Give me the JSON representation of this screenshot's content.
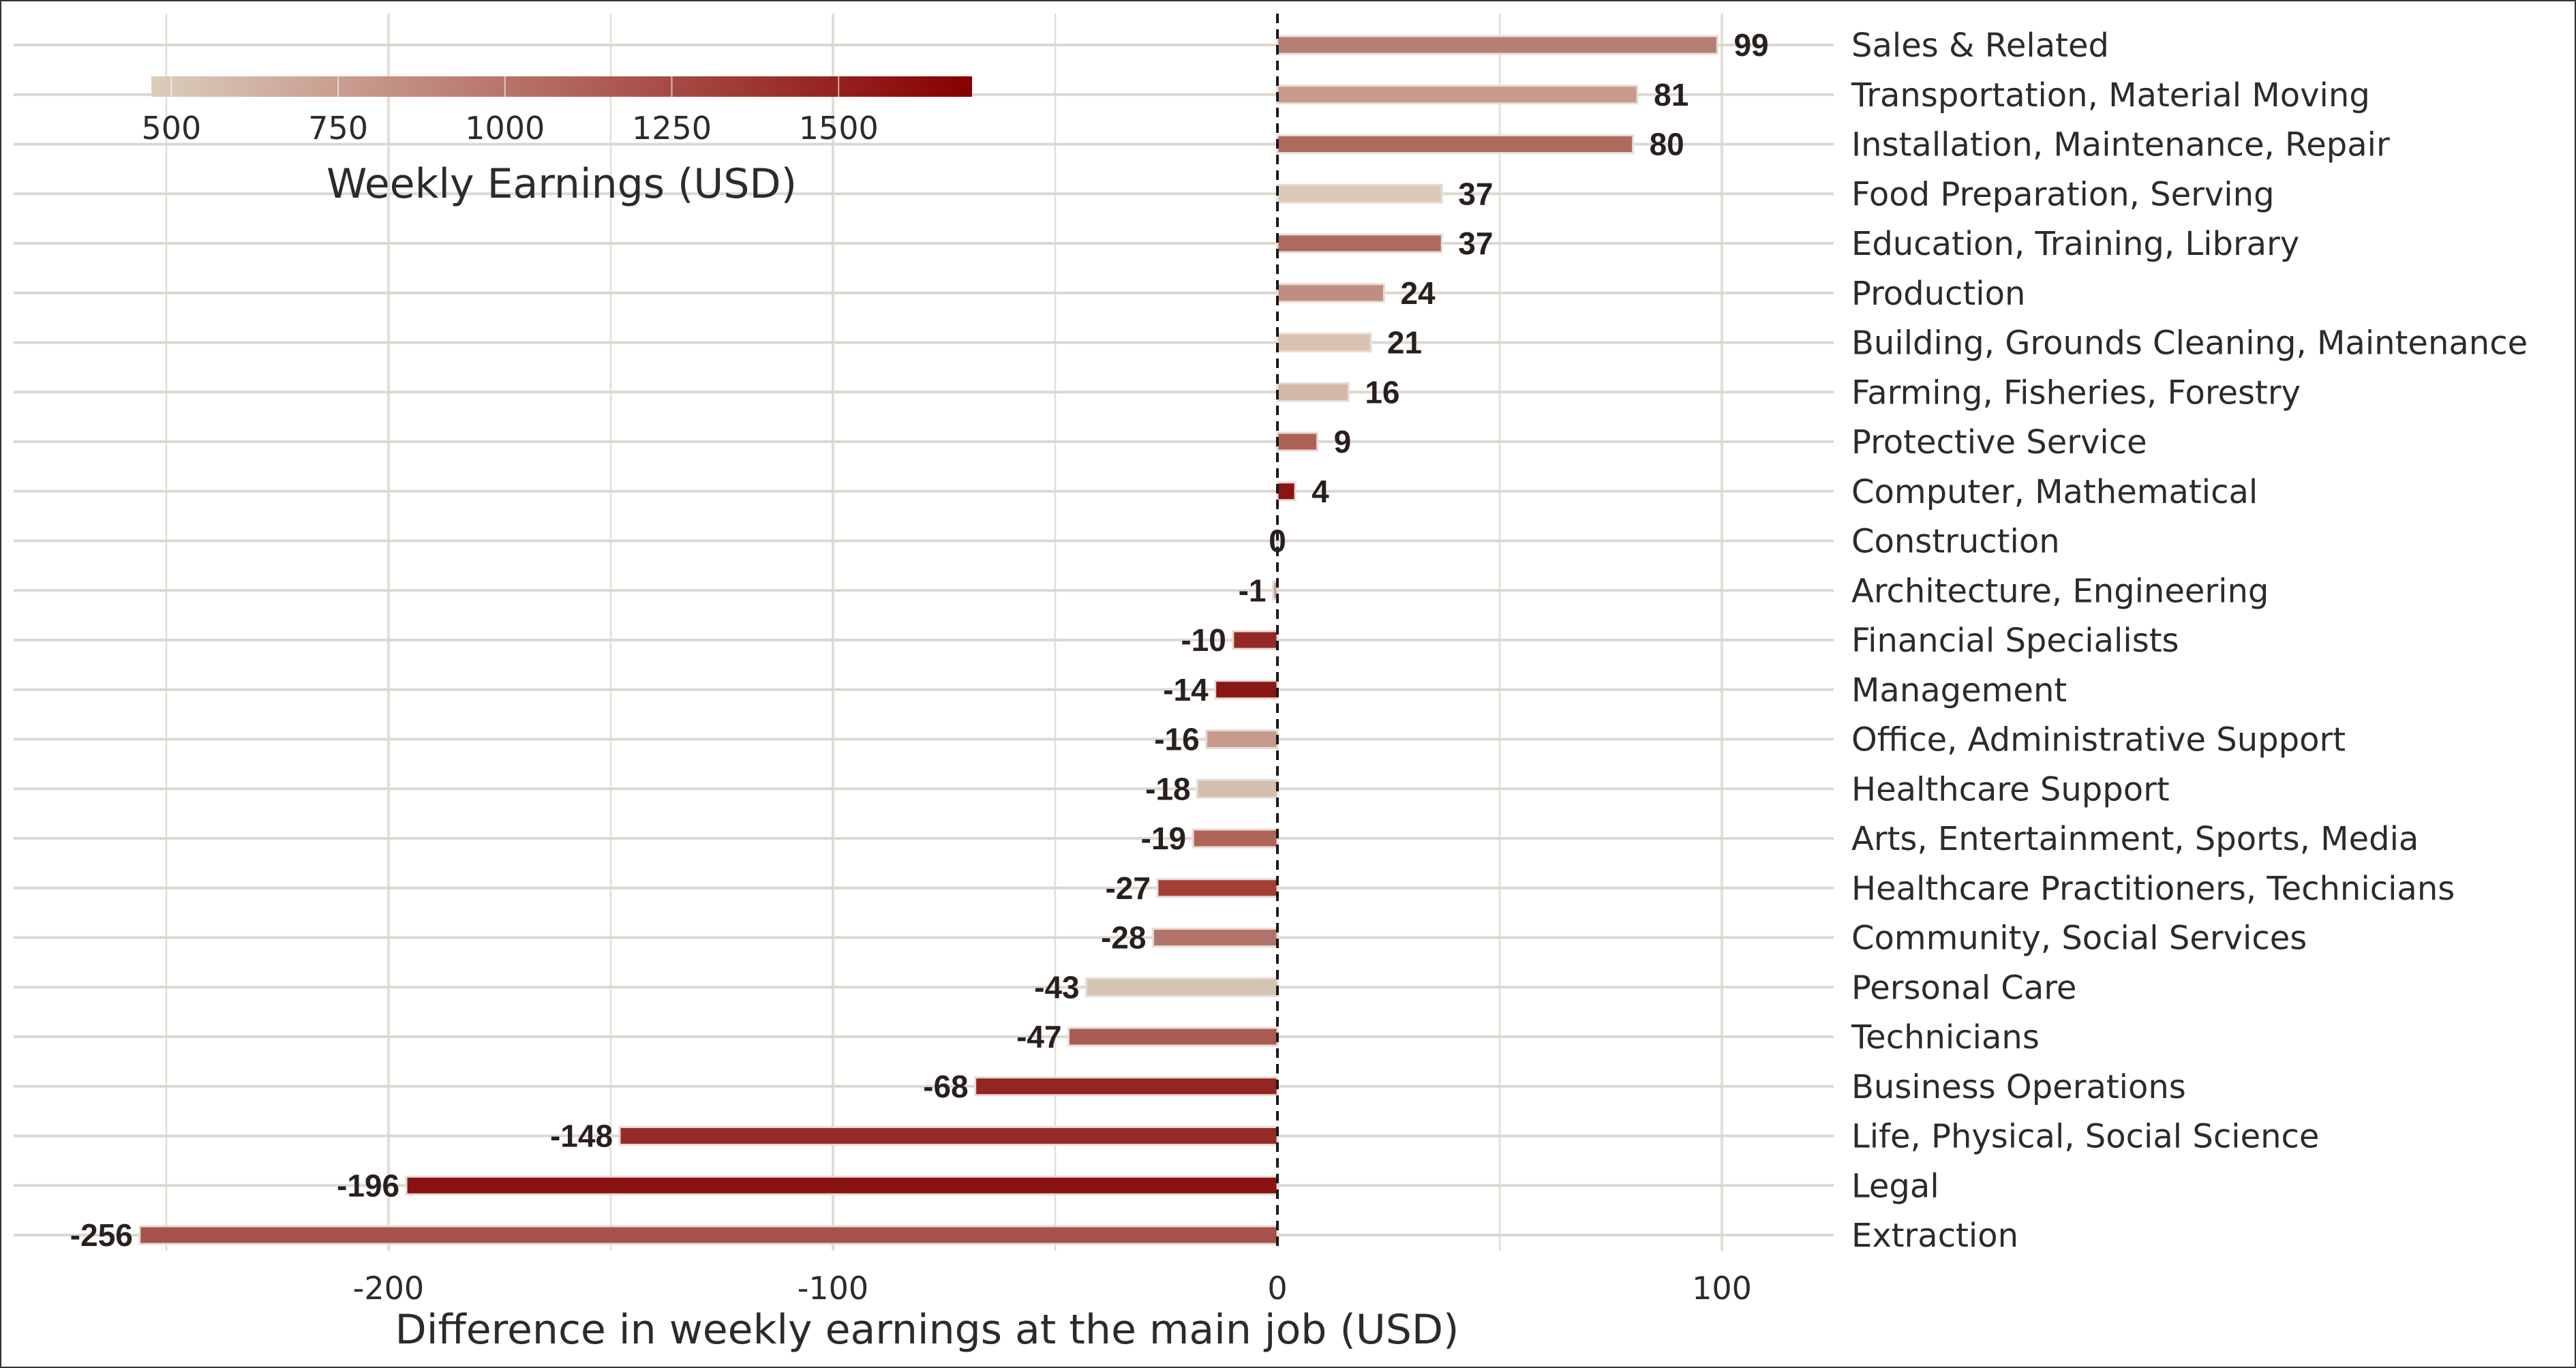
{
  "chart_data": {
    "type": "bar",
    "orientation": "horizontal",
    "xlabel": "Difference in weekly earnings at the main job (USD)",
    "xlim": [
      -285,
      125
    ],
    "x_ticks": [
      -200,
      -100,
      0,
      100
    ],
    "categories": [
      "Sales & Related",
      "Transportation, Material Moving",
      "Installation, Maintenance, Repair",
      "Food Preparation, Serving",
      "Education, Training, Library",
      "Production",
      "Building, Grounds Cleaning, Maintenance",
      "Farming, Fisheries, Forestry",
      "Protective Service",
      "Computer, Mathematical",
      "Construction",
      "Architecture, Engineering",
      "Financial Specialists",
      "Management",
      "Office, Administrative Support",
      "Healthcare Support",
      "Arts, Entertainment, Sports, Media",
      "Healthcare Practitioners, Technicians",
      "Community, Social Services",
      "Personal Care",
      "Technicians",
      "Business Operations",
      "Life, Physical, Social Science",
      "Legal",
      "Extraction"
    ],
    "values": [
      99,
      81,
      80,
      37,
      37,
      24,
      21,
      16,
      9,
      4,
      0,
      -1,
      -10,
      -14,
      -16,
      -18,
      -19,
      -27,
      -28,
      -43,
      -47,
      -68,
      -148,
      -196,
      -256
    ],
    "value_labels": [
      "99",
      "81",
      "80",
      "37",
      "37",
      "24",
      "21",
      "16",
      "9",
      "4",
      "0",
      "-1",
      "-10",
      "-14",
      "-16",
      "-18",
      "-19",
      "-27",
      "-28",
      "-43",
      "-47",
      "-68",
      "-148",
      "-196",
      "-256"
    ],
    "bar_colors": [
      "#b67f74",
      "#c9998b",
      "#ad6a5f",
      "#dbcab8",
      "#b0695e",
      "#c08e80",
      "#d7c2b1",
      "#d2b8a6",
      "#ad6258",
      "#8b1414",
      "#c9a596",
      "#c4a294",
      "#952727",
      "#8a1616",
      "#c7998b",
      "#d4beac",
      "#af6359",
      "#a33f35",
      "#b2746a",
      "#d6c4b2",
      "#aa5c53",
      "#932522",
      "#962a26",
      "#891313",
      "#a5524b"
    ],
    "legend": {
      "title": "Weekly Earnings (USD)",
      "type": "colorbar",
      "placement": "top-left",
      "ticks": [
        "500",
        "750",
        "1000",
        "1250",
        "1500"
      ],
      "tick_values": [
        500,
        750,
        1000,
        1250,
        1500
      ],
      "range": [
        470,
        1700
      ],
      "color_low": "#dccdbb",
      "color_high": "#860000"
    },
    "grid": true,
    "reference_line": {
      "x": 0,
      "style": "dashed"
    }
  }
}
